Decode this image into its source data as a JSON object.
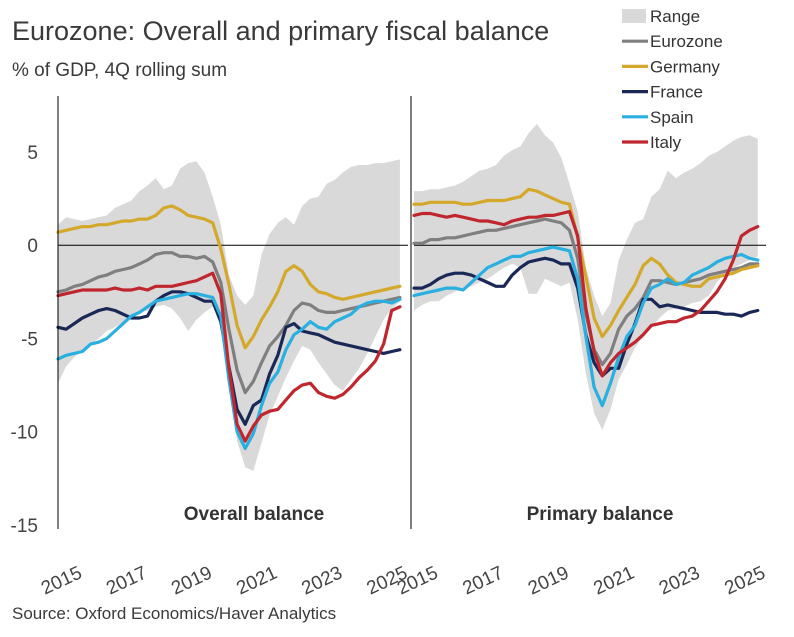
{
  "title": "Eurozone: Overall and primary fiscal balance",
  "subtitle": "% of GDP, 4Q rolling sum",
  "source": "Source: Oxford Economics/Haver Analytics",
  "legend": [
    {
      "name": "Range",
      "color": "#d9d9d9",
      "kind": "area"
    },
    {
      "name": "Eurozone",
      "color": "#7f7f7f",
      "kind": "line"
    },
    {
      "name": "Germany",
      "color": "#d4a82a",
      "kind": "line"
    },
    {
      "name": "France",
      "color": "#1a2857",
      "kind": "line"
    },
    {
      "name": "Spain",
      "color": "#2ab0e0",
      "kind": "line"
    },
    {
      "name": "Italy",
      "color": "#c0262d",
      "kind": "line"
    }
  ],
  "chart_data": [
    {
      "type": "line",
      "panel": "Overall balance",
      "xlim": [
        2015,
        2025.75
      ],
      "ylim": [
        -15,
        8
      ],
      "yticks": [
        -15,
        -10,
        -5,
        0,
        5
      ],
      "xticks": [
        "2015",
        "2017",
        "2019",
        "2021",
        "2023",
        "2025"
      ],
      "x": [
        2015.0,
        2015.25,
        2015.5,
        2015.75,
        2016.0,
        2016.25,
        2016.5,
        2016.75,
        2017.0,
        2017.25,
        2017.5,
        2017.75,
        2018.0,
        2018.25,
        2018.5,
        2018.75,
        2019.0,
        2019.25,
        2019.5,
        2019.75,
        2020.0,
        2020.25,
        2020.5,
        2020.75,
        2021.0,
        2021.25,
        2021.5,
        2021.75,
        2022.0,
        2022.25,
        2022.5,
        2022.75,
        2023.0,
        2023.25,
        2023.5,
        2023.75,
        2024.0,
        2024.25,
        2024.5,
        2024.75,
        2025.0,
        2025.25,
        2025.5
      ],
      "range_low": [
        -7.4,
        -6.5,
        -6.0,
        -5.6,
        -5.3,
        -5.0,
        -4.6,
        -4.4,
        -4.1,
        -3.8,
        -3.6,
        -3.5,
        -3.3,
        -3.2,
        -3.4,
        -3.9,
        -4.6,
        -4.0,
        -3.6,
        -3.3,
        -3.9,
        -7.6,
        -10.5,
        -11.9,
        -12.1,
        -10.6,
        -9.1,
        -8.1,
        -7.1,
        -6.2,
        -5.4,
        -5.6,
        -6.3,
        -6.9,
        -7.5,
        -7.8,
        -7.2,
        -6.6,
        -5.8,
        -4.9,
        -4.0,
        -3.4,
        -3.0
      ],
      "range_high": [
        1.1,
        1.5,
        1.4,
        1.3,
        1.4,
        1.5,
        1.6,
        2.0,
        2.2,
        2.4,
        2.9,
        3.2,
        3.6,
        3.0,
        3.2,
        4.1,
        4.4,
        4.5,
        3.9,
        2.6,
        1.1,
        -1.6,
        -2.7,
        -3.2,
        -2.7,
        -0.5,
        0.6,
        1.2,
        1.5,
        1.1,
        2.1,
        2.5,
        2.6,
        3.3,
        3.5,
        3.9,
        4.2,
        4.3,
        4.3,
        4.4,
        4.4,
        4.5,
        4.6
      ],
      "series": [
        {
          "name": "Eurozone",
          "color": "#7f7f7f",
          "values": [
            -2.5,
            -2.4,
            -2.2,
            -2.1,
            -1.9,
            -1.7,
            -1.6,
            -1.4,
            -1.3,
            -1.2,
            -1.0,
            -0.8,
            -0.5,
            -0.4,
            -0.4,
            -0.6,
            -0.6,
            -0.7,
            -0.6,
            -0.9,
            -2.0,
            -4.5,
            -6.7,
            -7.9,
            -7.3,
            -6.3,
            -5.4,
            -4.9,
            -4.3,
            -3.5,
            -3.1,
            -3.2,
            -3.5,
            -3.6,
            -3.6,
            -3.5,
            -3.4,
            -3.3,
            -3.2,
            -3.1,
            -3.0,
            -2.9,
            -2.8
          ]
        },
        {
          "name": "Germany",
          "color": "#d4a82a",
          "values": [
            0.7,
            0.8,
            0.9,
            1.0,
            1.0,
            1.1,
            1.1,
            1.2,
            1.3,
            1.3,
            1.4,
            1.4,
            1.6,
            2.0,
            2.1,
            1.9,
            1.6,
            1.5,
            1.4,
            1.2,
            -0.2,
            -2.1,
            -4.3,
            -5.5,
            -4.9,
            -4.0,
            -3.3,
            -2.5,
            -1.4,
            -1.1,
            -1.4,
            -2.1,
            -2.5,
            -2.6,
            -2.8,
            -2.9,
            -2.8,
            -2.7,
            -2.6,
            -2.5,
            -2.4,
            -2.3,
            -2.2
          ]
        },
        {
          "name": "France",
          "color": "#1a2857",
          "values": [
            -4.4,
            -4.5,
            -4.2,
            -3.9,
            -3.7,
            -3.5,
            -3.4,
            -3.5,
            -3.7,
            -3.9,
            -3.9,
            -3.8,
            -3.0,
            -2.7,
            -2.5,
            -2.5,
            -2.6,
            -2.8,
            -3.0,
            -3.0,
            -4.1,
            -6.5,
            -8.8,
            -9.6,
            -8.6,
            -8.3,
            -6.9,
            -5.9,
            -4.4,
            -4.2,
            -4.6,
            -4.7,
            -4.8,
            -5.0,
            -5.2,
            -5.3,
            -5.4,
            -5.5,
            -5.6,
            -5.7,
            -5.8,
            -5.7,
            -5.6
          ]
        },
        {
          "name": "Spain",
          "color": "#2ab0e0",
          "values": [
            -6.1,
            -5.9,
            -5.8,
            -5.7,
            -5.3,
            -5.2,
            -5.0,
            -4.6,
            -4.2,
            -3.8,
            -3.6,
            -3.3,
            -3.0,
            -2.9,
            -2.8,
            -2.7,
            -2.6,
            -2.6,
            -2.7,
            -2.8,
            -3.8,
            -7.2,
            -10.0,
            -10.9,
            -10.1,
            -8.6,
            -7.4,
            -6.8,
            -5.6,
            -4.8,
            -4.5,
            -4.1,
            -4.4,
            -4.5,
            -4.1,
            -3.9,
            -3.7,
            -3.3,
            -3.1,
            -3.0,
            -3.0,
            -3.1,
            -2.9
          ]
        },
        {
          "name": "Italy",
          "color": "#c0262d",
          "values": [
            -2.7,
            -2.6,
            -2.5,
            -2.4,
            -2.4,
            -2.4,
            -2.4,
            -2.3,
            -2.4,
            -2.4,
            -2.3,
            -2.4,
            -2.2,
            -2.2,
            -2.2,
            -2.1,
            -2.0,
            -1.9,
            -1.7,
            -1.5,
            -2.6,
            -6.6,
            -9.6,
            -10.5,
            -9.7,
            -9.1,
            -8.9,
            -8.8,
            -8.3,
            -7.8,
            -7.5,
            -7.4,
            -7.9,
            -8.1,
            -8.2,
            -8.0,
            -7.6,
            -7.1,
            -6.7,
            -6.2,
            -5.3,
            -3.5,
            -3.3
          ]
        }
      ]
    },
    {
      "type": "line",
      "panel": "Primary balance",
      "xlim": [
        2015,
        2025.75
      ],
      "ylim": [
        -15,
        8
      ],
      "yticks": [
        -15,
        -10,
        -5,
        0,
        5
      ],
      "xticks": [
        "2015",
        "2017",
        "2019",
        "2021",
        "2023",
        "2025"
      ],
      "x": [
        2015.0,
        2015.25,
        2015.5,
        2015.75,
        2016.0,
        2016.25,
        2016.5,
        2016.75,
        2017.0,
        2017.25,
        2017.5,
        2017.75,
        2018.0,
        2018.25,
        2018.5,
        2018.75,
        2019.0,
        2019.25,
        2019.5,
        2019.75,
        2020.0,
        2020.25,
        2020.5,
        2020.75,
        2021.0,
        2021.25,
        2021.5,
        2021.75,
        2022.0,
        2022.25,
        2022.5,
        2022.75,
        2023.0,
        2023.25,
        2023.5,
        2023.75,
        2024.0,
        2024.25,
        2024.5,
        2024.75,
        2025.0,
        2025.25,
        2025.5
      ],
      "range_low": [
        -3.5,
        -3.2,
        -3.0,
        -3.0,
        -2.7,
        -2.5,
        -2.3,
        -2.2,
        -2.0,
        -1.8,
        -1.5,
        -1.2,
        -1.0,
        -1.2,
        -2.6,
        -2.6,
        -1.8,
        -2.0,
        -2.2,
        -2.0,
        -4.0,
        -6.9,
        -9.0,
        -9.9,
        -8.8,
        -7.2,
        -6.4,
        -5.5,
        -4.9,
        -4.4,
        -3.9,
        -3.5,
        -3.4,
        -3.3,
        -3.1,
        -3.0,
        -2.7,
        -2.0,
        -1.5,
        -1.2,
        -1.0,
        -0.8,
        -0.6
      ],
      "range_high": [
        2.9,
        2.9,
        3.0,
        3.0,
        3.1,
        3.2,
        3.4,
        3.7,
        4.0,
        4.1,
        4.3,
        4.8,
        5.1,
        5.3,
        6.0,
        6.5,
        5.9,
        5.5,
        4.7,
        3.3,
        1.8,
        -1.2,
        -2.7,
        -3.8,
        -3.1,
        -0.8,
        0.3,
        1.2,
        1.4,
        2.6,
        3.0,
        4.0,
        3.6,
        3.9,
        4.1,
        4.4,
        4.8,
        5.0,
        5.3,
        5.6,
        5.8,
        5.9,
        5.7
      ],
      "series": [
        {
          "name": "Eurozone",
          "color": "#7f7f7f",
          "values": [
            0.1,
            0.1,
            0.3,
            0.3,
            0.4,
            0.4,
            0.5,
            0.6,
            0.7,
            0.8,
            0.8,
            0.9,
            1.0,
            1.1,
            1.2,
            1.3,
            1.4,
            1.3,
            1.2,
            0.8,
            -0.7,
            -3.7,
            -5.6,
            -6.4,
            -5.8,
            -4.5,
            -3.8,
            -3.4,
            -2.8,
            -1.9,
            -1.9,
            -2.0,
            -2.1,
            -2.0,
            -1.9,
            -1.8,
            -1.6,
            -1.5,
            -1.4,
            -1.3,
            -1.2,
            -1.0,
            -1.0
          ]
        },
        {
          "name": "Germany",
          "color": "#d4a82a",
          "values": [
            2.2,
            2.2,
            2.3,
            2.3,
            2.3,
            2.3,
            2.2,
            2.2,
            2.3,
            2.4,
            2.4,
            2.4,
            2.5,
            2.6,
            3.0,
            2.9,
            2.7,
            2.5,
            2.3,
            2.2,
            0.4,
            -1.7,
            -3.9,
            -4.9,
            -4.3,
            -3.5,
            -2.8,
            -2.1,
            -1.1,
            -0.7,
            -1.0,
            -1.6,
            -2.0,
            -2.1,
            -2.2,
            -2.2,
            -1.8,
            -1.7,
            -1.6,
            -1.5,
            -1.3,
            -1.2,
            -1.1
          ]
        },
        {
          "name": "France",
          "color": "#1a2857",
          "values": [
            -2.3,
            -2.3,
            -2.1,
            -1.8,
            -1.6,
            -1.5,
            -1.5,
            -1.6,
            -1.8,
            -2.0,
            -2.2,
            -2.2,
            -1.6,
            -1.2,
            -0.9,
            -0.8,
            -0.7,
            -0.8,
            -1.0,
            -1.0,
            -2.3,
            -4.8,
            -6.3,
            -7.0,
            -6.6,
            -6.6,
            -5.3,
            -4.2,
            -2.9,
            -2.9,
            -3.3,
            -3.2,
            -3.3,
            -3.4,
            -3.5,
            -3.6,
            -3.6,
            -3.6,
            -3.7,
            -3.7,
            -3.8,
            -3.6,
            -3.5
          ]
        },
        {
          "name": "Spain",
          "color": "#2ab0e0",
          "values": [
            -2.7,
            -2.6,
            -2.5,
            -2.4,
            -2.3,
            -2.3,
            -2.4,
            -2.0,
            -1.6,
            -1.2,
            -1.0,
            -0.8,
            -0.6,
            -0.6,
            -0.4,
            -0.3,
            -0.2,
            -0.1,
            -0.2,
            -0.3,
            -1.8,
            -4.9,
            -7.6,
            -8.6,
            -7.4,
            -6.0,
            -4.9,
            -4.3,
            -3.1,
            -2.3,
            -2.1,
            -1.8,
            -2.1,
            -2.0,
            -1.6,
            -1.4,
            -1.2,
            -0.9,
            -0.7,
            -0.6,
            -0.5,
            -0.7,
            -0.8
          ]
        },
        {
          "name": "Italy",
          "color": "#c0262d",
          "values": [
            1.6,
            1.7,
            1.7,
            1.6,
            1.5,
            1.6,
            1.5,
            1.4,
            1.3,
            1.3,
            1.2,
            1.1,
            1.3,
            1.4,
            1.5,
            1.5,
            1.6,
            1.6,
            1.7,
            1.8,
            0.5,
            -3.4,
            -5.7,
            -7.0,
            -6.3,
            -5.8,
            -5.5,
            -5.2,
            -4.8,
            -4.3,
            -4.2,
            -4.1,
            -4.1,
            -3.9,
            -3.8,
            -3.5,
            -3.0,
            -2.5,
            -1.8,
            -0.8,
            0.5,
            0.8,
            1.0
          ]
        }
      ]
    }
  ]
}
